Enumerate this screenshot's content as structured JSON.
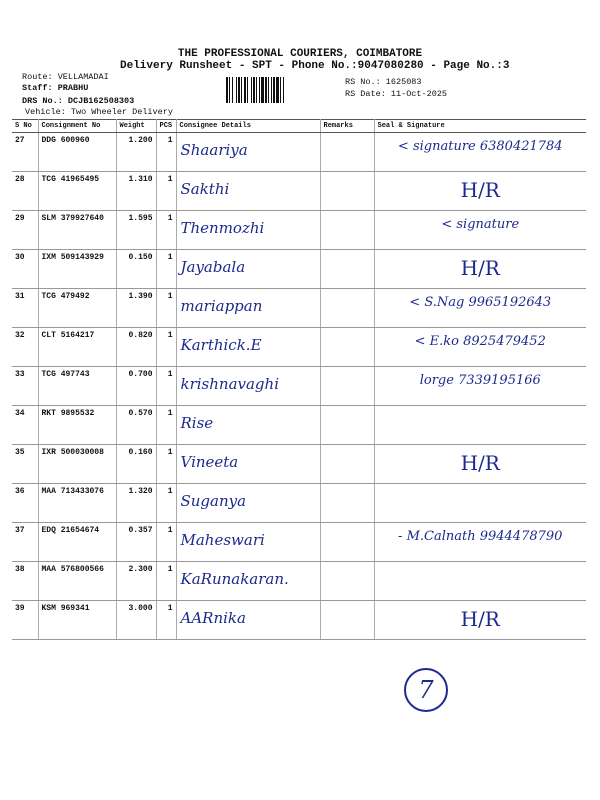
{
  "header": {
    "title": "THE PROFESSIONAL COURIERS, COIMBATORE",
    "subtitle": "Delivery Runsheet - SPT - Phone No.:9047080280 - Page No.:3"
  },
  "meta": {
    "route": "Route: VELLAMADAI",
    "staff": "Staff: PRABHU",
    "drs": "DRS No.: DCJB162508303",
    "vehicle": "Vehicle: Two Wheeler Delivery",
    "rs_no": "RS No.: 1625083",
    "rs_date": "RS Date: 11-Oct-2025"
  },
  "table": {
    "headers": [
      "S No",
      "Consignment No",
      "Weight",
      "PCS",
      "Consignee Details",
      "Remarks",
      "Seal & Signature"
    ],
    "rows": [
      {
        "sno": "27",
        "cn": "DDG 600960",
        "weight": "1.200",
        "pcs": "1",
        "consignee": "Shaariya",
        "seal": "< signature 6380421784"
      },
      {
        "sno": "28",
        "cn": "TCG 41965495",
        "weight": "1.310",
        "pcs": "1",
        "consignee": "Sakthi",
        "seal": "H/R"
      },
      {
        "sno": "29",
        "cn": "SLM 379927640",
        "weight": "1.595",
        "pcs": "1",
        "consignee": "Thenmozhi",
        "seal": "< signature"
      },
      {
        "sno": "30",
        "cn": "IXM 509143929",
        "weight": "0.150",
        "pcs": "1",
        "consignee": "Jayabala",
        "seal": "H/R"
      },
      {
        "sno": "31",
        "cn": "TCG 479492",
        "weight": "1.390",
        "pcs": "1",
        "consignee": "mariappan",
        "seal": "< S.Nag 9965192643"
      },
      {
        "sno": "32",
        "cn": "CLT 5164217",
        "weight": "0.820",
        "pcs": "1",
        "consignee": "Karthick.E",
        "seal": "< E.ko 8925479452"
      },
      {
        "sno": "33",
        "cn": "TCG 497743",
        "weight": "0.700",
        "pcs": "1",
        "consignee": "krishnavaghi",
        "seal": "lorge 7339195166"
      },
      {
        "sno": "34",
        "cn": "RKT 9895532",
        "weight": "0.570",
        "pcs": "1",
        "consignee": "Rise",
        "seal": ""
      },
      {
        "sno": "35",
        "cn": "IXR 500030008",
        "weight": "0.160",
        "pcs": "1",
        "consignee": "Vineeta",
        "seal": "H/R"
      },
      {
        "sno": "36",
        "cn": "MAA 713433076",
        "weight": "1.320",
        "pcs": "1",
        "consignee": "Suganya",
        "seal": ""
      },
      {
        "sno": "37",
        "cn": "EDQ 21654674",
        "weight": "0.357",
        "pcs": "1",
        "consignee": "Maheswari",
        "seal": "- M.Calnath 9944478790"
      },
      {
        "sno": "38",
        "cn": "MAA 576800566",
        "weight": "2.300",
        "pcs": "1",
        "consignee": "KaRunakaran.",
        "seal": ""
      },
      {
        "sno": "39",
        "cn": "KSM 969341",
        "weight": "3.000",
        "pcs": "1",
        "consignee": "AARnika",
        "seal": "H/R"
      }
    ]
  },
  "page_mark": "7",
  "colors": {
    "ink": "#1c2a8c",
    "print": "#111111"
  }
}
